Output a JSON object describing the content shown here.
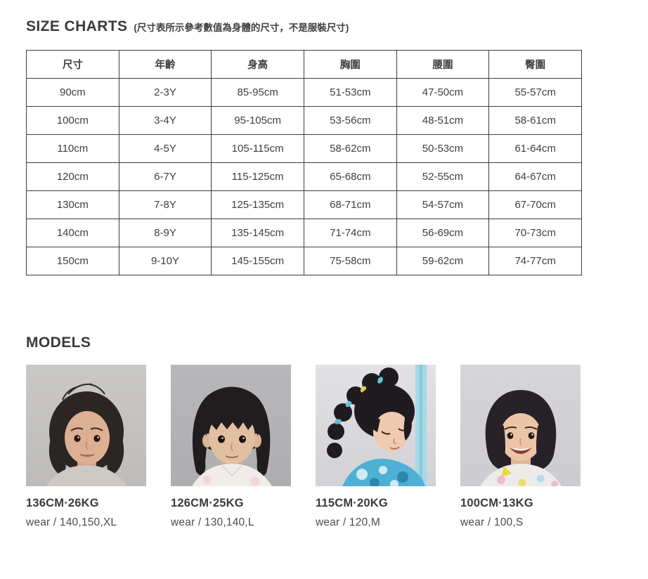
{
  "colors": {
    "text": "#3c3c3c",
    "table_border": "#3e3e3e"
  },
  "size_charts": {
    "title": "SIZE CHARTS",
    "subtitle": "(尺寸表所示參考數值為身體的尺寸，不是服裝尺寸)",
    "table": {
      "headers": [
        "尺寸",
        "年齡",
        "身高",
        "胸圍",
        "腰圍",
        "臀圍"
      ],
      "rows": [
        [
          "90cm",
          "2-3Y",
          "85-95cm",
          "51-53cm",
          "47-50cm",
          "55-57cm"
        ],
        [
          "100cm",
          "3-4Y",
          "95-105cm",
          "53-56cm",
          "48-51cm",
          "58-61cm"
        ],
        [
          "110cm",
          "4-5Y",
          "105-115cm",
          "58-62cm",
          "50-53cm",
          "61-64cm"
        ],
        [
          "120cm",
          "6-7Y",
          "115-125cm",
          "65-68cm",
          "52-55cm",
          "64-67cm"
        ],
        [
          "130cm",
          "7-8Y",
          "125-135cm",
          "68-71cm",
          "54-57cm",
          "67-70cm"
        ],
        [
          "140cm",
          "8-9Y",
          "135-145cm",
          "71-74cm",
          "56-69cm",
          "70-73cm"
        ],
        [
          "150cm",
          "9-10Y",
          "145-155cm",
          "75-58cm",
          "59-62cm",
          "74-77cm"
        ]
      ]
    }
  },
  "models": {
    "title": "MODELS",
    "items": [
      {
        "spec": "136CM·26KG",
        "wear": "wear /  140,150,XL"
      },
      {
        "spec": "126CM·25KG",
        "wear": "wear /  130,140,L"
      },
      {
        "spec": "115CM·20KG",
        "wear": "wear /  120,M"
      },
      {
        "spec": "100CM·13KG",
        "wear": "wear /  100,S"
      }
    ]
  }
}
